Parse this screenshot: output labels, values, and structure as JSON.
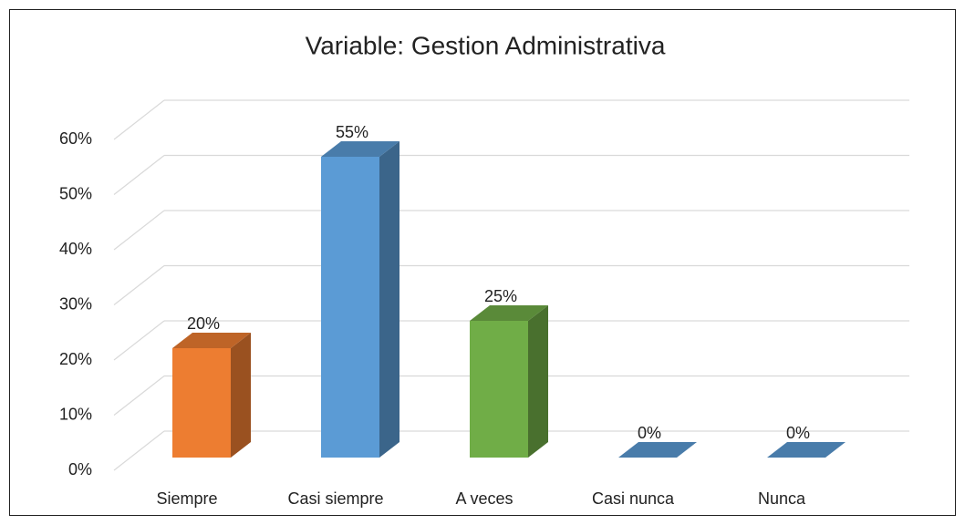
{
  "chart_data": {
    "type": "bar3d",
    "title": "Variable: Gestion Administrativa",
    "categories": [
      "Siempre",
      "Casi siempre",
      "A veces",
      "Casi nunca",
      "Nunca"
    ],
    "values": [
      20,
      55,
      25,
      0,
      0
    ],
    "value_labels": [
      "20%",
      "55%",
      "25%",
      "0%",
      "0%"
    ],
    "colors": [
      "#ed7d31",
      "#5b9bd5",
      "#70ad47",
      "#5b9bd5",
      "#5b9bd5"
    ],
    "ylim": [
      0,
      60
    ],
    "yticks": [
      {
        "value": 0,
        "label": "0%"
      },
      {
        "value": 10,
        "label": "10%"
      },
      {
        "value": 20,
        "label": "20%"
      },
      {
        "value": 30,
        "label": "30%"
      },
      {
        "value": 40,
        "label": "40%"
      },
      {
        "value": 50,
        "label": "50%"
      },
      {
        "value": 60,
        "label": "60%"
      }
    ],
    "grid": true
  }
}
